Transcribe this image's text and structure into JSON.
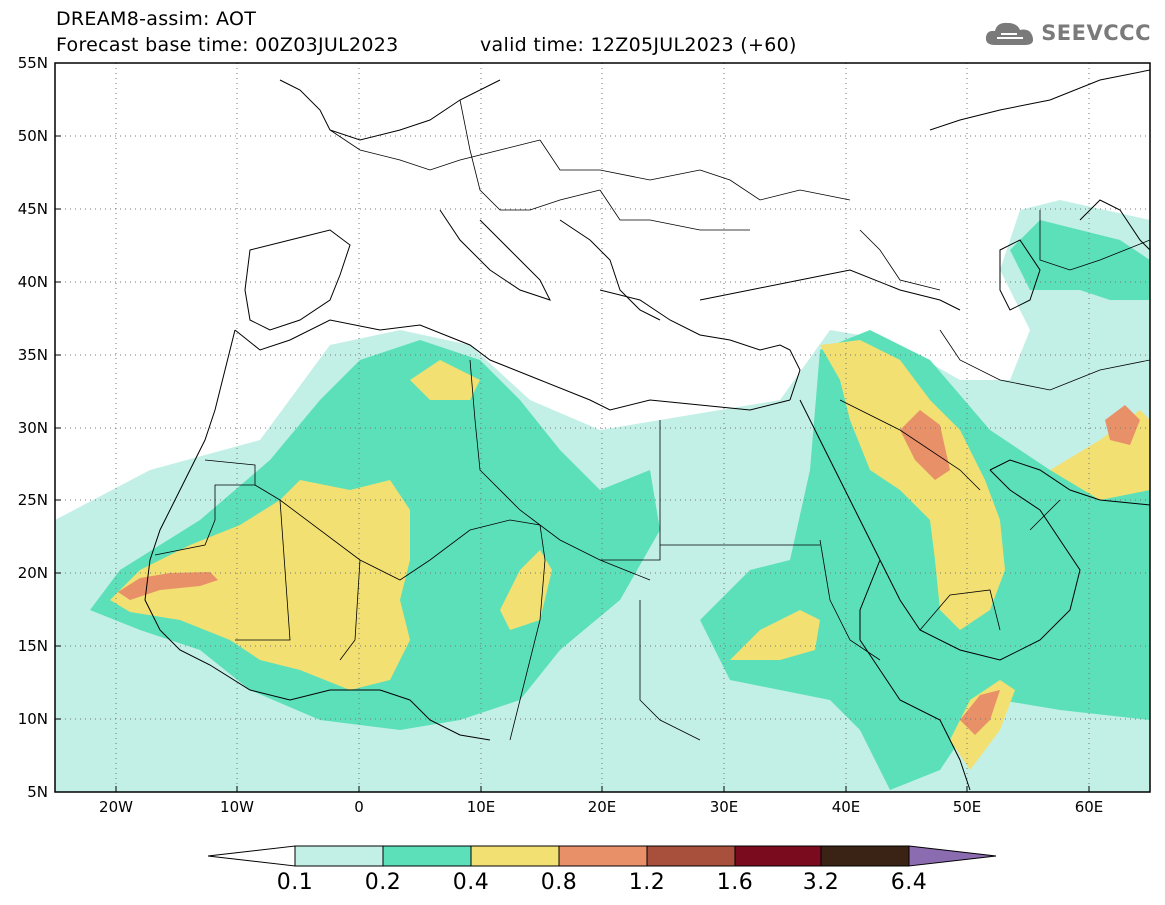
{
  "header": {
    "title_line1": "DREAM8-assim: AOT",
    "base_time": "Forecast base time: 00Z03JUL2023",
    "valid_time": "valid time: 12Z05JUL2023 (+60)",
    "logo_text": "SEEVCCC",
    "logo_icon": "cloud-icon"
  },
  "map": {
    "lon_range": [
      -25,
      65
    ],
    "lat_range": [
      5,
      55
    ],
    "lat_labels": [
      "55N",
      "50N",
      "45N",
      "40N",
      "35N",
      "30N",
      "25N",
      "20N",
      "15N",
      "10N",
      "5N"
    ],
    "lon_labels": [
      "20W",
      "10W",
      "0",
      "10E",
      "20E",
      "30E",
      "40E",
      "50E",
      "60E"
    ],
    "grid": "dotted"
  },
  "legend": {
    "levels": [
      "0.1",
      "0.2",
      "0.4",
      "0.8",
      "1.2",
      "1.6",
      "3.2",
      "6.4"
    ],
    "colors": [
      "#ffffff",
      "#c2f0e6",
      "#5ce0b9",
      "#f2e072",
      "#e89068",
      "#a8503c",
      "#7a0a1e",
      "#3a2314",
      "#8c6cb0"
    ]
  }
}
